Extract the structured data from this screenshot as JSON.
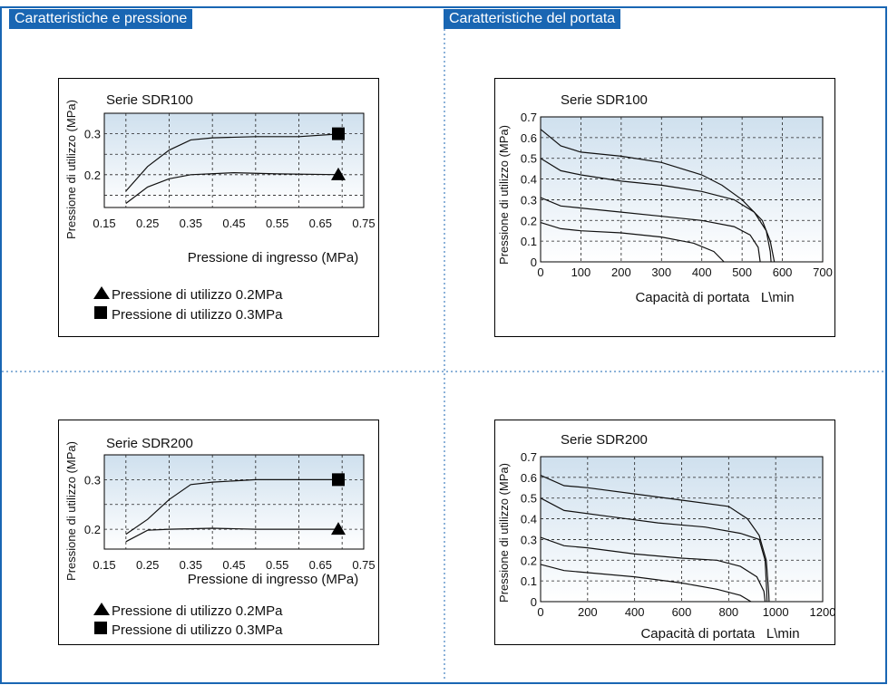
{
  "headers": {
    "left": "Caratteristiche e pressione",
    "right": "Caratteristiche del portata"
  },
  "colors": {
    "frame": "#1966b3",
    "header_bg": "#1966b3",
    "grad_top": "#cfe0ee",
    "grad_bottom": "#ffffff"
  },
  "legend": {
    "tri": "Pressione di utilizzo 0.2MPa",
    "sq": "Pressione di utilizzo 0.3MPa"
  },
  "chart_data": [
    {
      "id": "p100",
      "type": "line",
      "title": "Serie SDR100",
      "xlabel": "Pressione di ingresso (MPa)",
      "ylabel": "Pressione di utilizzo (MPa)",
      "x_ticks": [
        "0.15",
        "0.25",
        "0.35",
        "0.45",
        "0.55",
        "0.65",
        "0.75"
      ],
      "y_ticks": [
        "0.2",
        "0.3"
      ],
      "xlim": [
        0.15,
        0.75
      ],
      "ylim": [
        0.12,
        0.35
      ],
      "series": [
        {
          "marker": "square",
          "points": [
            [
              0.2,
              0.16
            ],
            [
              0.25,
              0.22
            ],
            [
              0.3,
              0.26
            ],
            [
              0.35,
              0.285
            ],
            [
              0.4,
              0.29
            ],
            [
              0.5,
              0.293
            ],
            [
              0.6,
              0.293
            ],
            [
              0.7,
              0.3
            ]
          ]
        },
        {
          "marker": "triangle",
          "points": [
            [
              0.2,
              0.13
            ],
            [
              0.25,
              0.17
            ],
            [
              0.3,
              0.19
            ],
            [
              0.35,
              0.2
            ],
            [
              0.45,
              0.205
            ],
            [
              0.55,
              0.202
            ],
            [
              0.7,
              0.2
            ]
          ]
        }
      ]
    },
    {
      "id": "p200",
      "type": "line",
      "title": "Serie SDR200",
      "xlabel": "Pressione di ingresso (MPa)",
      "ylabel": "Pressione di utilizzo (MPa)",
      "x_ticks": [
        "0.15",
        "0.25",
        "0.35",
        "0.45",
        "0.55",
        "0.65",
        "0.75"
      ],
      "y_ticks": [
        "0.2",
        "0.3"
      ],
      "xlim": [
        0.15,
        0.75
      ],
      "ylim": [
        0.16,
        0.35
      ],
      "series": [
        {
          "marker": "square",
          "points": [
            [
              0.2,
              0.19
            ],
            [
              0.25,
              0.22
            ],
            [
              0.3,
              0.26
            ],
            [
              0.35,
              0.29
            ],
            [
              0.4,
              0.295
            ],
            [
              0.5,
              0.3
            ],
            [
              0.6,
              0.3
            ],
            [
              0.7,
              0.3
            ]
          ]
        },
        {
          "marker": "triangle",
          "points": [
            [
              0.2,
              0.175
            ],
            [
              0.25,
              0.198
            ],
            [
              0.3,
              0.2
            ],
            [
              0.4,
              0.202
            ],
            [
              0.5,
              0.2
            ],
            [
              0.6,
              0.2
            ],
            [
              0.7,
              0.2
            ]
          ]
        }
      ]
    },
    {
      "id": "f100",
      "type": "line",
      "title": "Serie SDR100",
      "xlabel": "Capacità di portata   L\\min",
      "ylabel": "Pressione di utilizzo (MPa)",
      "x_ticks": [
        "0",
        "100",
        "200",
        "300",
        "400",
        "500",
        "600",
        "700"
      ],
      "y_ticks": [
        "0",
        "0.1",
        "0.2",
        "0.3",
        "0.4",
        "0.5",
        "0.6",
        "0.7"
      ],
      "xlim": [
        0,
        700
      ],
      "ylim": [
        0,
        0.7
      ],
      "series": [
        {
          "points": [
            [
              0,
              0.64
            ],
            [
              50,
              0.56
            ],
            [
              100,
              0.53
            ],
            [
              200,
              0.51
            ],
            [
              300,
              0.48
            ],
            [
              400,
              0.42
            ],
            [
              450,
              0.37
            ],
            [
              500,
              0.3
            ],
            [
              550,
              0.2
            ],
            [
              570,
              0.1
            ],
            [
              580,
              0
            ]
          ]
        },
        {
          "points": [
            [
              0,
              0.5
            ],
            [
              50,
              0.44
            ],
            [
              100,
              0.42
            ],
            [
              200,
              0.39
            ],
            [
              300,
              0.37
            ],
            [
              400,
              0.34
            ],
            [
              480,
              0.3
            ],
            [
              530,
              0.24
            ],
            [
              560,
              0.15
            ],
            [
              570,
              0.05
            ],
            [
              572,
              0
            ]
          ]
        },
        {
          "points": [
            [
              0,
              0.31
            ],
            [
              50,
              0.27
            ],
            [
              100,
              0.26
            ],
            [
              200,
              0.24
            ],
            [
              300,
              0.22
            ],
            [
              400,
              0.2
            ],
            [
              480,
              0.17
            ],
            [
              520,
              0.13
            ],
            [
              540,
              0.07
            ],
            [
              545,
              0
            ]
          ]
        },
        {
          "points": [
            [
              0,
              0.19
            ],
            [
              50,
              0.16
            ],
            [
              100,
              0.15
            ],
            [
              200,
              0.14
            ],
            [
              300,
              0.12
            ],
            [
              380,
              0.09
            ],
            [
              430,
              0.05
            ],
            [
              455,
              0
            ]
          ]
        }
      ]
    },
    {
      "id": "f200",
      "type": "line",
      "title": "Serie SDR200",
      "xlabel": "Capacità di portata   L\\min",
      "ylabel": "Pressione di utilizzo (MPa)",
      "x_ticks": [
        "0",
        "200",
        "400",
        "600",
        "800",
        "1000",
        "1200"
      ],
      "y_ticks": [
        "0",
        "0.1",
        "0.2",
        "0.3",
        "0.4",
        "0.5",
        "0.6",
        "0.7"
      ],
      "xlim": [
        0,
        1200
      ],
      "ylim": [
        0,
        0.7
      ],
      "series": [
        {
          "points": [
            [
              0,
              0.61
            ],
            [
              100,
              0.56
            ],
            [
              200,
              0.55
            ],
            [
              400,
              0.52
            ],
            [
              600,
              0.49
            ],
            [
              800,
              0.46
            ],
            [
              880,
              0.4
            ],
            [
              930,
              0.32
            ],
            [
              960,
              0.2
            ],
            [
              970,
              0.05
            ],
            [
              972,
              0
            ]
          ]
        },
        {
          "points": [
            [
              0,
              0.5
            ],
            [
              100,
              0.44
            ],
            [
              300,
              0.41
            ],
            [
              500,
              0.38
            ],
            [
              700,
              0.36
            ],
            [
              850,
              0.33
            ],
            [
              930,
              0.3
            ],
            [
              955,
              0.2
            ],
            [
              962,
              0.05
            ],
            [
              963,
              0
            ]
          ]
        },
        {
          "points": [
            [
              0,
              0.31
            ],
            [
              100,
              0.27
            ],
            [
              200,
              0.26
            ],
            [
              400,
              0.23
            ],
            [
              600,
              0.21
            ],
            [
              750,
              0.2
            ],
            [
              850,
              0.17
            ],
            [
              920,
              0.12
            ],
            [
              950,
              0.05
            ],
            [
              955,
              0
            ]
          ]
        },
        {
          "points": [
            [
              0,
              0.18
            ],
            [
              100,
              0.15
            ],
            [
              200,
              0.14
            ],
            [
              400,
              0.12
            ],
            [
              600,
              0.09
            ],
            [
              750,
              0.06
            ],
            [
              850,
              0.03
            ],
            [
              895,
              0
            ]
          ]
        }
      ]
    }
  ]
}
